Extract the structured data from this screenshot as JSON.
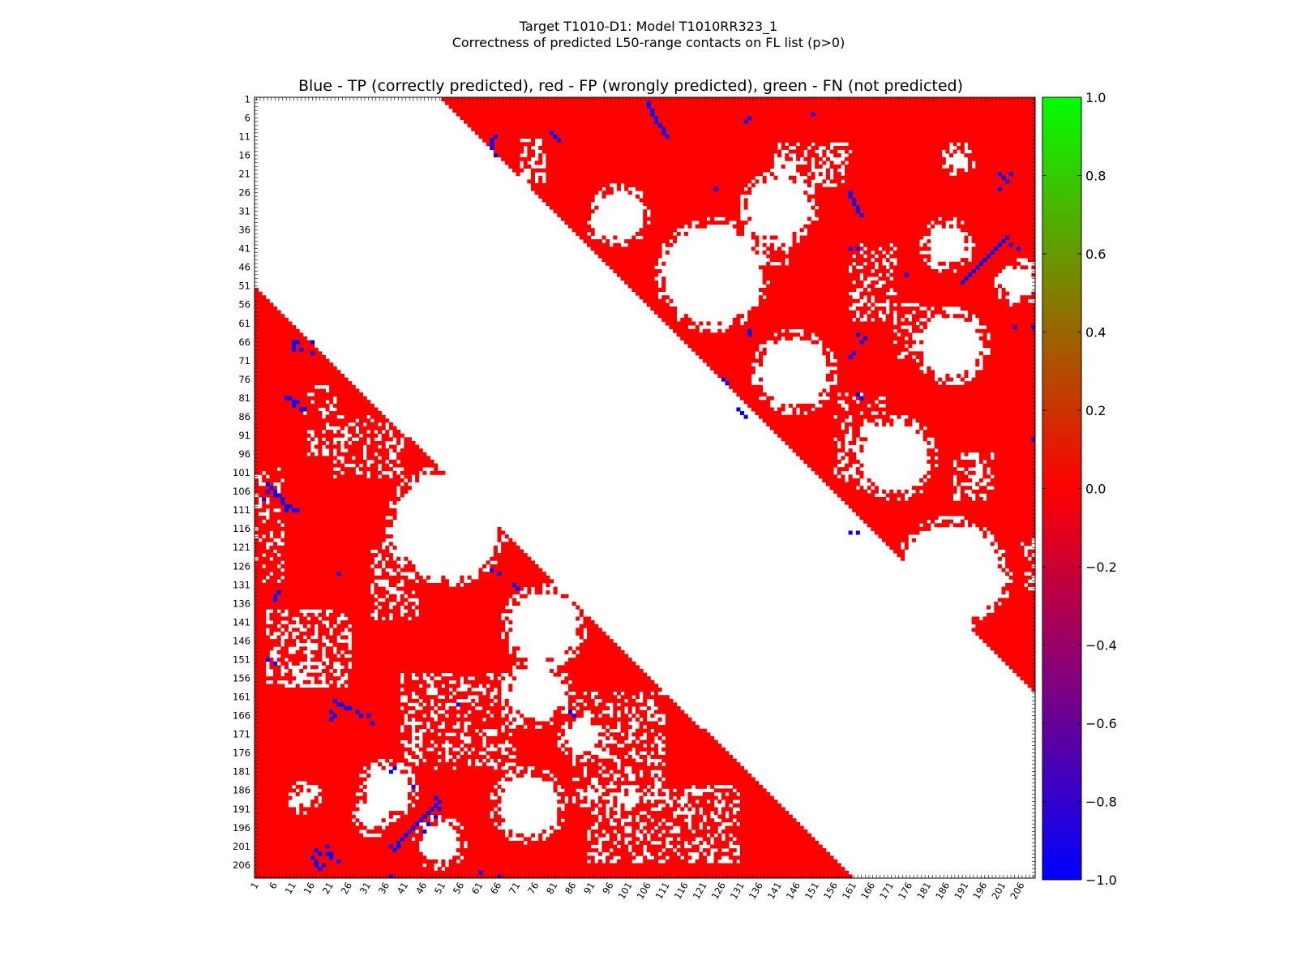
{
  "figure": {
    "suptitle_line1": "Target T1010-D1: Model T1010RR323_1",
    "suptitle_line2": "Correctness of predicted L50-range contacts on FL list (p>0)"
  },
  "chart_data": {
    "type": "heatmap",
    "title": "Blue - TP (correctly predicted), red - FP (wrongly predicted), green - FN (not predicted)",
    "n_residues": 209,
    "x_ticks": [
      1,
      6,
      11,
      16,
      21,
      26,
      31,
      36,
      41,
      46,
      51,
      56,
      61,
      66,
      71,
      76,
      81,
      86,
      91,
      96,
      101,
      106,
      111,
      116,
      121,
      126,
      131,
      136,
      141,
      146,
      151,
      156,
      161,
      166,
      171,
      176,
      181,
      186,
      191,
      196,
      201,
      206
    ],
    "y_ticks": [
      1,
      6,
      11,
      16,
      21,
      26,
      31,
      36,
      41,
      46,
      51,
      56,
      61,
      66,
      71,
      76,
      81,
      86,
      91,
      96,
      101,
      106,
      111,
      116,
      121,
      126,
      131,
      136,
      141,
      146,
      151,
      156,
      161,
      166,
      171,
      176,
      181,
      186,
      191,
      196,
      201,
      206
    ],
    "colorbar": {
      "min": -1.0,
      "max": 1.0,
      "ticks": [
        "1.0",
        "0.8",
        "0.6",
        "0.4",
        "0.2",
        "0.0",
        "−0.2",
        "−0.4",
        "−0.6",
        "−0.8",
        "−1.0"
      ],
      "colors": [
        "#0000ff",
        "#ff0000",
        "#00ff00"
      ]
    },
    "legend": {
      "tp": "blue",
      "fp": "red",
      "fn": "green"
    },
    "upper_region": {
      "min_separation": 50,
      "max_col": 209
    },
    "lower_region": {
      "col_at_row_52": 1,
      "col_at_row_209": 160
    },
    "white_blobs": [
      {
        "residue_i": 115,
        "residue_j": 52,
        "radius": 15
      },
      {
        "residue_i": 142,
        "residue_j": 78,
        "radius": 10
      },
      {
        "residue_i": 190,
        "residue_j": 74,
        "radius": 9
      },
      {
        "residue_i": 200,
        "residue_j": 50,
        "radius": 6
      },
      {
        "residue_i": 186,
        "residue_j": 36,
        "radius": 7
      },
      {
        "residue_i": 128,
        "residue_j": 187,
        "radius": 14
      },
      {
        "residue_i": 74,
        "residue_j": 145,
        "radius": 10
      },
      {
        "residue_i": 40,
        "residue_j": 186,
        "radius": 6
      },
      {
        "residue_i": 97,
        "residue_j": 172,
        "radius": 10
      },
      {
        "residue_i": 67,
        "residue_j": 187,
        "radius": 9
      },
      {
        "residue_i": 48,
        "residue_j": 123,
        "radius": 14
      },
      {
        "residue_i": 32,
        "residue_j": 98,
        "radius": 7
      },
      {
        "residue_i": 30,
        "residue_j": 141,
        "radius": 9
      },
      {
        "residue_i": 17,
        "residue_j": 189,
        "radius": 3
      },
      {
        "residue_i": 50,
        "residue_j": 205,
        "radius": 5
      },
      {
        "residue_i": 130,
        "residue_j": 196,
        "radius": 6
      },
      {
        "residue_i": 172,
        "residue_j": 88,
        "radius": 5
      },
      {
        "residue_i": 193,
        "residue_j": 32,
        "radius": 4
      },
      {
        "residue_i": 188,
        "residue_j": 14,
        "radius": 3
      },
      {
        "residue_i": 160,
        "residue_j": 76,
        "radius": 8
      }
    ],
    "speckle_regions": [
      {
        "i1": 13,
        "i2": 24,
        "j1": 140,
        "j2": 160,
        "density": 0.45
      },
      {
        "i1": 24,
        "i2": 45,
        "j1": 133,
        "j2": 143,
        "density": 0.4
      },
      {
        "i1": 28,
        "i2": 38,
        "j1": 90,
        "j2": 104,
        "density": 0.35
      },
      {
        "i1": 12,
        "i2": 24,
        "j1": 72,
        "j2": 78,
        "density": 0.4
      },
      {
        "i1": 40,
        "i2": 60,
        "j1": 160,
        "j2": 172,
        "density": 0.35
      },
      {
        "i1": 56,
        "i2": 70,
        "j1": 172,
        "j2": 182,
        "density": 0.35
      },
      {
        "i1": 80,
        "i2": 105,
        "j1": 156,
        "j2": 170,
        "density": 0.35
      },
      {
        "i1": 96,
        "i2": 108,
        "j1": 188,
        "j2": 198,
        "density": 0.4
      },
      {
        "i1": 118,
        "i2": 132,
        "j1": 206,
        "j2": 209,
        "density": 0.4
      },
      {
        "i1": 138,
        "i2": 158,
        "j1": 4,
        "j2": 26,
        "density": 0.45
      },
      {
        "i1": 120,
        "i2": 140,
        "j1": 32,
        "j2": 44,
        "density": 0.35
      },
      {
        "i1": 100,
        "i2": 130,
        "j1": 1,
        "j2": 8,
        "density": 0.25
      },
      {
        "i1": 155,
        "i2": 180,
        "j1": 40,
        "j2": 70,
        "density": 0.35
      },
      {
        "i1": 160,
        "i2": 190,
        "j1": 86,
        "j2": 110,
        "density": 0.35
      },
      {
        "i1": 185,
        "i2": 205,
        "j1": 90,
        "j2": 130,
        "density": 0.35
      },
      {
        "i1": 86,
        "i2": 102,
        "j1": 22,
        "j2": 40,
        "density": 0.35
      },
      {
        "i1": 78,
        "i2": 96,
        "j1": 14,
        "j2": 22,
        "density": 0.3
      }
    ],
    "tp_contacts": [
      [
        2,
        106
      ],
      [
        3,
        106
      ],
      [
        4,
        107
      ],
      [
        5,
        107
      ],
      [
        6,
        108
      ],
      [
        7,
        108
      ],
      [
        8,
        109
      ],
      [
        9,
        110
      ],
      [
        10,
        110
      ],
      [
        11,
        111
      ],
      [
        11,
        65
      ],
      [
        12,
        64
      ],
      [
        13,
        64
      ],
      [
        14,
        64
      ],
      [
        16,
        65
      ],
      [
        11,
        81
      ],
      [
        12,
        82
      ],
      [
        10,
        80
      ],
      [
        6,
        133
      ],
      [
        7,
        132
      ],
      [
        5,
        150
      ],
      [
        28,
        161
      ],
      [
        29,
        161
      ],
      [
        30,
        162
      ],
      [
        31,
        162
      ],
      [
        27,
        160
      ],
      [
        26,
        160
      ],
      [
        32,
        163
      ],
      [
        21,
        200
      ],
      [
        22,
        201
      ],
      [
        23,
        202
      ],
      [
        21,
        203
      ],
      [
        25,
        200
      ],
      [
        38,
        202
      ],
      [
        39,
        201
      ],
      [
        40,
        200
      ],
      [
        41,
        199
      ],
      [
        42,
        198
      ],
      [
        43,
        197
      ],
      [
        44,
        196
      ],
      [
        45,
        195
      ],
      [
        46,
        194
      ],
      [
        47,
        193
      ],
      [
        48,
        192
      ],
      [
        49,
        191
      ],
      [
        50,
        190
      ],
      [
        40,
        203
      ],
      [
        41,
        205
      ],
      [
        62,
        204
      ],
      [
        62,
        209
      ],
      [
        41,
        160
      ],
      [
        41,
        162
      ],
      [
        64,
        162
      ],
      [
        65,
        164
      ],
      [
        66,
        163
      ],
      [
        70,
        160
      ],
      [
        69,
        161
      ],
      [
        80,
        162
      ],
      [
        81,
        163
      ],
      [
        84,
        130
      ],
      [
        85,
        131
      ],
      [
        86,
        132
      ],
      [
        76,
        126
      ],
      [
        77,
        127
      ],
      [
        117,
        160
      ],
      [
        117,
        162
      ],
      [
        63,
        133
      ],
      [
        64,
        133
      ],
      [
        25,
        124
      ],
      [
        48,
        175
      ],
      [
        92,
        209
      ],
      [
        66,
        11
      ],
      [
        66,
        12
      ],
      [
        67,
        11
      ],
      [
        68,
        11
      ],
      [
        68,
        13
      ],
      [
        66,
        16
      ],
      [
        69,
        16
      ],
      [
        81,
        10
      ],
      [
        82,
        11
      ],
      [
        82,
        12
      ],
      [
        83,
        11
      ],
      [
        84,
        13
      ],
      [
        84,
        14
      ],
      [
        81,
        9
      ],
      [
        105,
        5
      ],
      [
        106,
        6
      ],
      [
        106,
        4
      ],
      [
        107,
        6
      ],
      [
        107,
        7
      ],
      [
        108,
        8
      ],
      [
        109,
        8
      ],
      [
        110,
        9
      ],
      [
        110,
        10
      ],
      [
        111,
        9
      ],
      [
        111,
        11
      ],
      [
        111,
        12
      ],
      [
        104,
        4
      ],
      [
        108,
        3
      ],
      [
        134,
        6
      ],
      [
        135,
        6
      ],
      [
        133,
        7
      ],
      [
        151,
        4
      ],
      [
        152,
        6
      ],
      [
        162,
        22
      ],
      [
        163,
        23
      ],
      [
        163,
        24
      ],
      [
        164,
        25
      ],
      [
        164,
        26
      ],
      [
        165,
        21
      ],
      [
        166,
        22
      ],
      [
        165,
        28
      ],
      [
        166,
        29
      ],
      [
        167,
        21
      ],
      [
        166,
        31
      ],
      [
        168,
        32
      ],
      [
        200,
        39
      ],
      [
        199,
        40
      ],
      [
        198,
        41
      ],
      [
        197,
        42
      ],
      [
        196,
        43
      ],
      [
        195,
        44
      ],
      [
        194,
        45
      ],
      [
        193,
        46
      ],
      [
        192,
        47
      ],
      [
        191,
        48
      ],
      [
        190,
        49
      ],
      [
        189,
        50
      ],
      [
        201,
        37
      ],
      [
        201,
        39
      ],
      [
        202,
        38
      ],
      [
        197,
        46
      ],
      [
        195,
        47
      ],
      [
        193,
        49
      ],
      [
        191,
        50
      ],
      [
        188,
        49
      ],
      [
        202,
        17
      ],
      [
        203,
        18
      ],
      [
        203,
        20
      ],
      [
        204,
        16
      ],
      [
        205,
        17
      ],
      [
        206,
        17
      ],
      [
        204,
        21
      ],
      [
        206,
        19
      ],
      [
        207,
        18
      ],
      [
        205,
        23
      ],
      [
        201,
        20
      ],
      [
        203,
        21
      ],
      [
        127,
        64
      ],
      [
        128,
        66
      ],
      [
        131,
        70
      ],
      [
        132,
        71
      ],
      [
        165,
        85
      ],
      [
        166,
        86
      ],
      [
        163,
        55
      ],
      [
        180,
        38
      ],
      [
        181,
        37
      ],
      [
        185,
        43
      ],
      [
        209,
        37
      ],
      [
        208,
        61
      ],
      [
        209,
        66
      ],
      [
        128,
        23
      ]
    ]
  }
}
